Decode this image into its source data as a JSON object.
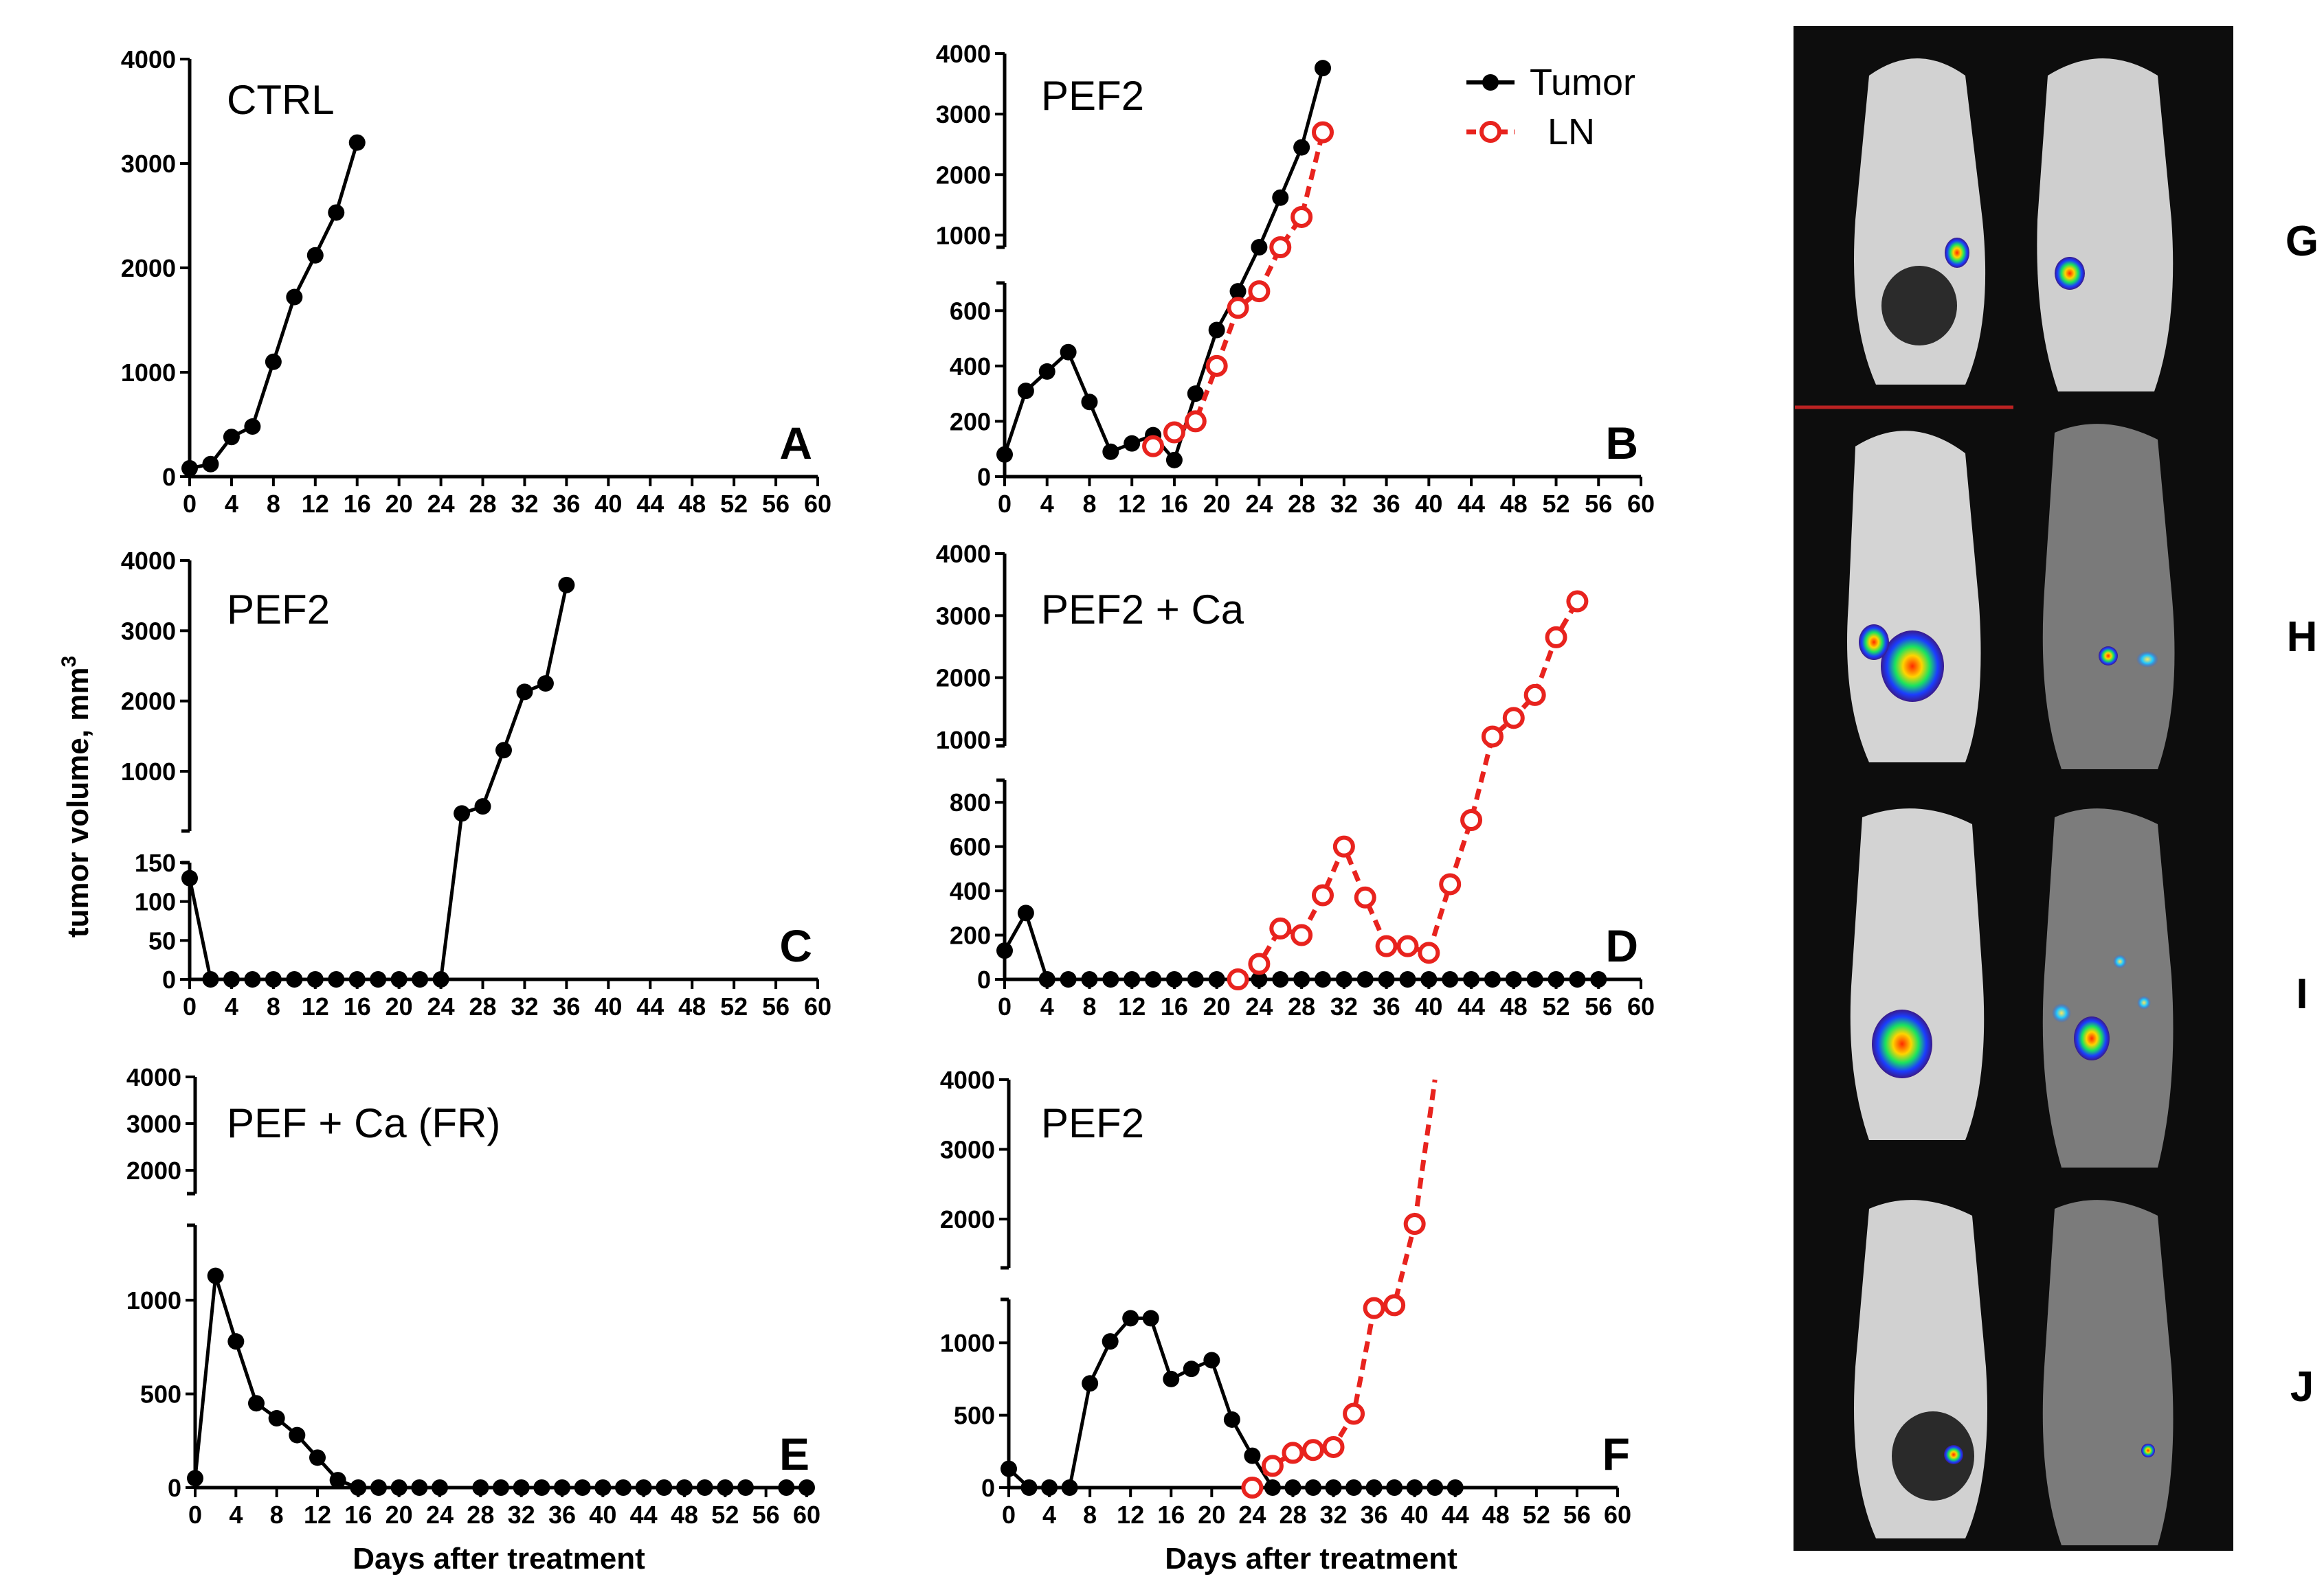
{
  "figure": {
    "y_label_main": "tumor volume, mm",
    "y_label_sup": "3",
    "x_label_left": "Days after treatment",
    "x_label_right": "Days after treatment",
    "image_row_labels": [
      "G",
      "H",
      "I",
      "J"
    ],
    "colors": {
      "tumor": "#000000",
      "ln": "#e8231e"
    }
  },
  "legend": {
    "tumor": "Tumor",
    "ln": "LN"
  },
  "chart_data": [
    {
      "id": "A",
      "type": "line",
      "title": "CTRL",
      "letter": "A",
      "xlabel": "",
      "ylabel": "tumor volume, mm3",
      "xlim": [
        0,
        60
      ],
      "x_ticks": [
        "0",
        "4",
        "8",
        "12",
        "16",
        "20",
        "24",
        "28",
        "32",
        "36",
        "40",
        "44",
        "48",
        "52",
        "56",
        "60"
      ],
      "y_segments": [
        {
          "range": [
            0,
            4000
          ],
          "ticks": [
            "0",
            "1000",
            "2000",
            "3000",
            "4000"
          ]
        }
      ],
      "series": [
        {
          "name": "Tumor",
          "points": [
            [
              0,
              80
            ],
            [
              2,
              120
            ],
            [
              4,
              380
            ],
            [
              6,
              480
            ],
            [
              8,
              1100
            ],
            [
              10,
              1720
            ],
            [
              12,
              2120
            ],
            [
              14,
              2530
            ],
            [
              16,
              3200
            ]
          ]
        }
      ]
    },
    {
      "id": "B",
      "type": "line",
      "title": "PEF2",
      "letter": "B",
      "xlabel": "",
      "ylabel": "tumor volume, mm3",
      "xlim": [
        0,
        60
      ],
      "x_ticks": [
        "0",
        "4",
        "8",
        "12",
        "16",
        "20",
        "24",
        "28",
        "32",
        "36",
        "40",
        "44",
        "48",
        "52",
        "56",
        "60"
      ],
      "y_segments": [
        {
          "range": [
            0,
            700
          ],
          "ticks": [
            "0",
            "200",
            "400",
            "600"
          ]
        },
        {
          "range": [
            800,
            4000
          ],
          "ticks": [
            "1000",
            "2000",
            "3000",
            "4000"
          ]
        }
      ],
      "series": [
        {
          "name": "Tumor",
          "points": [
            [
              0,
              80
            ],
            [
              2,
              310
            ],
            [
              4,
              380
            ],
            [
              6,
              450
            ],
            [
              8,
              270
            ],
            [
              10,
              90
            ],
            [
              12,
              120
            ],
            [
              14,
              150
            ],
            [
              16,
              60
            ],
            [
              18,
              300
            ],
            [
              20,
              530
            ],
            [
              22,
              670
            ],
            [
              24,
              800
            ],
            [
              26,
              1620
            ],
            [
              28,
              2450
            ],
            [
              30,
              3760
            ]
          ]
        },
        {
          "name": "LN",
          "points": [
            [
              14,
              110
            ],
            [
              16,
              160
            ],
            [
              18,
              200
            ],
            [
              20,
              400
            ],
            [
              22,
              610
            ],
            [
              24,
              670
            ],
            [
              26,
              800
            ],
            [
              28,
              1300
            ],
            [
              30,
              2700
            ]
          ]
        }
      ]
    },
    {
      "id": "C",
      "type": "line",
      "title": "PEF2",
      "letter": "C",
      "xlabel": "",
      "ylabel": "tumor volume, mm3",
      "xlim": [
        0,
        60
      ],
      "x_ticks": [
        "0",
        "4",
        "8",
        "12",
        "16",
        "20",
        "24",
        "28",
        "32",
        "36",
        "40",
        "44",
        "48",
        "52",
        "56",
        "60"
      ],
      "y_segments": [
        {
          "range": [
            0,
            150
          ],
          "ticks": [
            "0",
            "50",
            "100",
            "150"
          ]
        },
        {
          "range": [
            150,
            4000
          ],
          "ticks": [
            "1000",
            "2000",
            "3000",
            "4000"
          ]
        }
      ],
      "series": [
        {
          "name": "Tumor",
          "points": [
            [
              0,
              130
            ],
            [
              2,
              0
            ],
            [
              4,
              0
            ],
            [
              6,
              0
            ],
            [
              8,
              0
            ],
            [
              10,
              0
            ],
            [
              12,
              0
            ],
            [
              14,
              0
            ],
            [
              16,
              0
            ],
            [
              18,
              0
            ],
            [
              20,
              0
            ],
            [
              22,
              0
            ],
            [
              24,
              0
            ],
            [
              26,
              400
            ],
            [
              28,
              500
            ],
            [
              30,
              1300
            ],
            [
              32,
              2130
            ],
            [
              34,
              2250
            ],
            [
              36,
              3650
            ]
          ]
        }
      ]
    },
    {
      "id": "D",
      "type": "line",
      "title": "PEF2 + Ca",
      "letter": "D",
      "xlabel": "",
      "ylabel": "tumor volume, mm3",
      "xlim": [
        0,
        60
      ],
      "x_ticks": [
        "0",
        "4",
        "8",
        "12",
        "16",
        "20",
        "24",
        "28",
        "32",
        "36",
        "40",
        "44",
        "48",
        "52",
        "56",
        "60"
      ],
      "y_segments": [
        {
          "range": [
            0,
            900
          ],
          "ticks": [
            "0",
            "200",
            "400",
            "600",
            "800"
          ]
        },
        {
          "range": [
            900,
            4000
          ],
          "ticks": [
            "1000",
            "2000",
            "3000",
            "4000"
          ]
        }
      ],
      "series": [
        {
          "name": "Tumor",
          "points": [
            [
              0,
              130
            ],
            [
              2,
              300
            ],
            [
              4,
              0
            ],
            [
              6,
              0
            ],
            [
              8,
              0
            ],
            [
              10,
              0
            ],
            [
              12,
              0
            ],
            [
              14,
              0
            ],
            [
              16,
              0
            ],
            [
              18,
              0
            ],
            [
              20,
              0
            ],
            [
              22,
              0
            ],
            [
              24,
              0
            ],
            [
              26,
              0
            ],
            [
              28,
              0
            ],
            [
              30,
              0
            ],
            [
              32,
              0
            ],
            [
              34,
              0
            ],
            [
              36,
              0
            ],
            [
              38,
              0
            ],
            [
              40,
              0
            ],
            [
              42,
              0
            ],
            [
              44,
              0
            ],
            [
              46,
              0
            ],
            [
              48,
              0
            ],
            [
              50,
              0
            ],
            [
              52,
              0
            ],
            [
              54,
              0
            ],
            [
              56,
              0
            ]
          ]
        },
        {
          "name": "LN",
          "points": [
            [
              22,
              0
            ],
            [
              24,
              70
            ],
            [
              26,
              230
            ],
            [
              28,
              200
            ],
            [
              30,
              380
            ],
            [
              32,
              600
            ],
            [
              34,
              370
            ],
            [
              36,
              150
            ],
            [
              38,
              150
            ],
            [
              40,
              120
            ],
            [
              42,
              430
            ],
            [
              44,
              720
            ],
            [
              46,
              1050
            ],
            [
              48,
              1350
            ],
            [
              50,
              1720
            ],
            [
              52,
              2650
            ],
            [
              54,
              3230
            ]
          ]
        }
      ]
    },
    {
      "id": "E",
      "type": "line",
      "title": "PEF + Ca (FR)",
      "letter": "E",
      "xlabel": "Days after treatment",
      "ylabel": "tumor volume, mm3",
      "xlim": [
        0,
        60
      ],
      "x_ticks": [
        "0",
        "4",
        "8",
        "12",
        "16",
        "20",
        "24",
        "28",
        "32",
        "36",
        "40",
        "44",
        "48",
        "52",
        "56",
        "60"
      ],
      "y_segments": [
        {
          "range": [
            0,
            1400
          ],
          "ticks": [
            "0",
            "500",
            "1000"
          ]
        },
        {
          "range": [
            1500,
            4000
          ],
          "ticks": [
            "2000",
            "3000",
            "4000"
          ]
        }
      ],
      "series": [
        {
          "name": "Tumor",
          "segments": [
            [
              [
                0,
                50
              ],
              [
                2,
                1130
              ],
              [
                4,
                780
              ],
              [
                6,
                450
              ],
              [
                8,
                370
              ],
              [
                10,
                280
              ],
              [
                12,
                160
              ],
              [
                14,
                40
              ],
              [
                16,
                0
              ],
              [
                18,
                0
              ],
              [
                20,
                0
              ],
              [
                22,
                0
              ],
              [
                24,
                0
              ]
            ],
            [
              [
                28,
                0
              ],
              [
                30,
                0
              ],
              [
                32,
                0
              ],
              [
                34,
                0
              ],
              [
                36,
                0
              ],
              [
                38,
                0
              ],
              [
                40,
                0
              ],
              [
                42,
                0
              ],
              [
                44,
                0
              ],
              [
                46,
                0
              ],
              [
                48,
                0
              ],
              [
                50,
                0
              ],
              [
                52,
                0
              ],
              [
                54,
                0
              ]
            ],
            [
              [
                58,
                0
              ],
              [
                60,
                0
              ]
            ]
          ]
        }
      ]
    },
    {
      "id": "F",
      "type": "line",
      "title": "PEF2",
      "letter": "F",
      "xlabel": "Days after treatment",
      "ylabel": "tumor volume, mm3",
      "xlim": [
        0,
        60
      ],
      "x_ticks": [
        "0",
        "4",
        "8",
        "12",
        "16",
        "20",
        "24",
        "28",
        "32",
        "36",
        "40",
        "44",
        "48",
        "52",
        "56",
        "60"
      ],
      "y_segments": [
        {
          "range": [
            0,
            1300
          ],
          "ticks": [
            "0",
            "500",
            "1000"
          ]
        },
        {
          "range": [
            1300,
            4000
          ],
          "ticks": [
            "2000",
            "3000",
            "4000"
          ]
        }
      ],
      "series": [
        {
          "name": "Tumor",
          "points": [
            [
              0,
              130
            ],
            [
              2,
              0
            ],
            [
              4,
              0
            ],
            [
              6,
              0
            ],
            [
              8,
              720
            ],
            [
              10,
              1010
            ],
            [
              12,
              1170
            ],
            [
              14,
              1170
            ],
            [
              16,
              750
            ],
            [
              18,
              820
            ],
            [
              20,
              880
            ],
            [
              22,
              470
            ],
            [
              24,
              220
            ],
            [
              26,
              0
            ],
            [
              28,
              0
            ],
            [
              30,
              0
            ],
            [
              32,
              0
            ],
            [
              34,
              0
            ],
            [
              36,
              0
            ],
            [
              38,
              0
            ],
            [
              40,
              0
            ],
            [
              42,
              0
            ],
            [
              44,
              0
            ]
          ]
        },
        {
          "name": "LN",
          "points": [
            [
              24,
              0
            ],
            [
              26,
              150
            ],
            [
              28,
              240
            ],
            [
              30,
              260
            ],
            [
              32,
              280
            ],
            [
              34,
              510
            ],
            [
              36,
              1240
            ],
            [
              38,
              1260
            ],
            [
              40,
              1930
            ]
          ],
          "extends_to": [
            42,
            4000
          ]
        }
      ]
    }
  ]
}
